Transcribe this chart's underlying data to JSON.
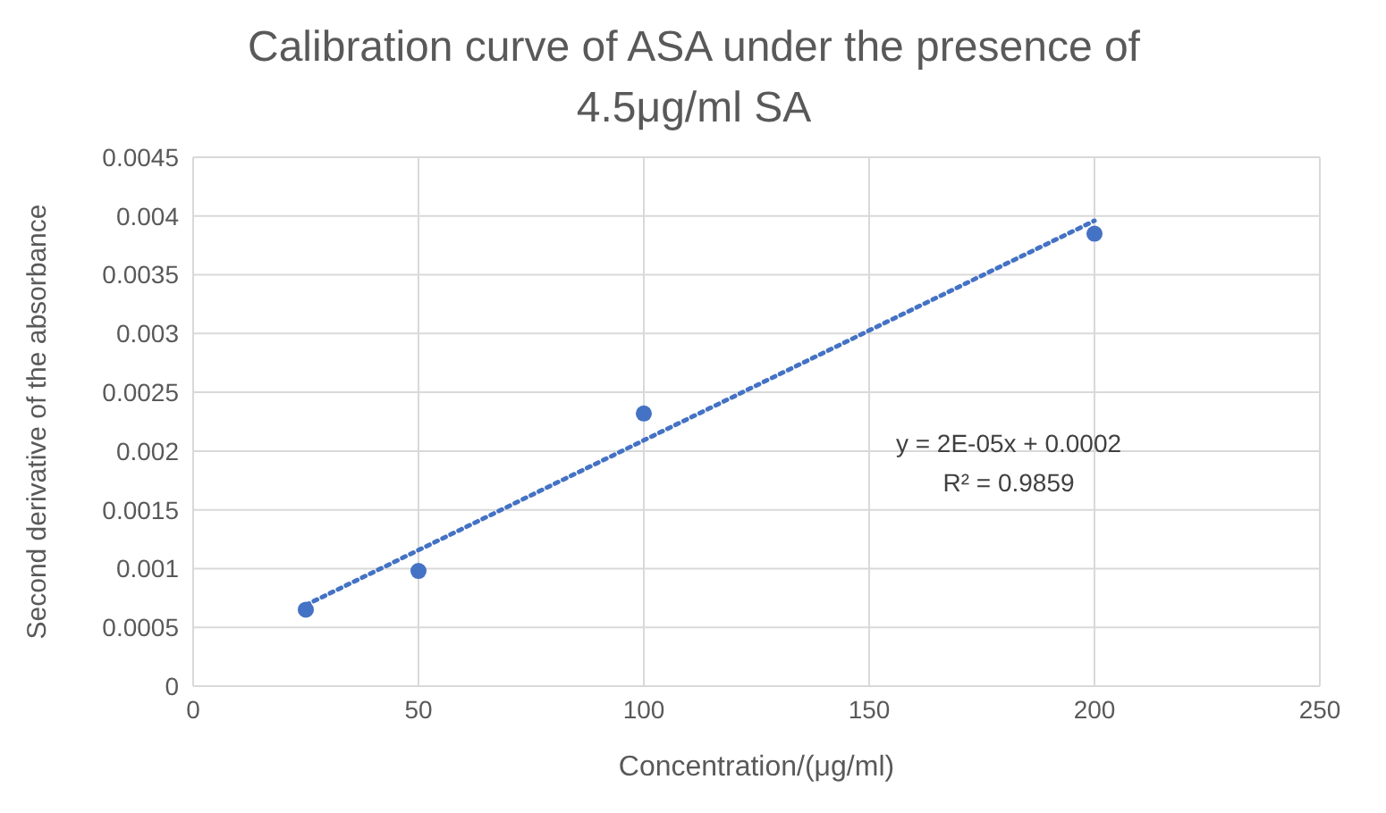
{
  "chart_data": {
    "type": "scatter",
    "title": "Calibration curve of ASA under the presence of 4.5μg/ml SA",
    "xlabel": "Concentration/(μg/ml)",
    "ylabel": "Second derivative of the absorbance",
    "x": [
      25,
      50,
      100,
      200
    ],
    "series": [
      {
        "type": "scatter",
        "color": "#4472c4",
        "values": [
          0.00065,
          0.00098,
          0.00232,
          0.00385
        ],
        "marker": "circle"
      },
      {
        "type": "line",
        "color": "#4472c4",
        "x": [
          25,
          200
        ],
        "values": [
          0.00069,
          0.00396
        ],
        "line_style": "dotted",
        "marker": "none"
      }
    ],
    "xlim": [
      0,
      250
    ],
    "xticks": [
      0,
      50,
      100,
      150,
      200,
      250
    ],
    "ylim": [
      0,
      0.0045
    ],
    "yticks": [
      0,
      0.0005,
      0.001,
      0.0015,
      0.002,
      0.0025,
      0.003,
      0.0035,
      0.004,
      0.0045
    ],
    "grid": true,
    "annotations": [
      "y = 2E-05x + 0.0002",
      "R² = 0.9859"
    ]
  }
}
